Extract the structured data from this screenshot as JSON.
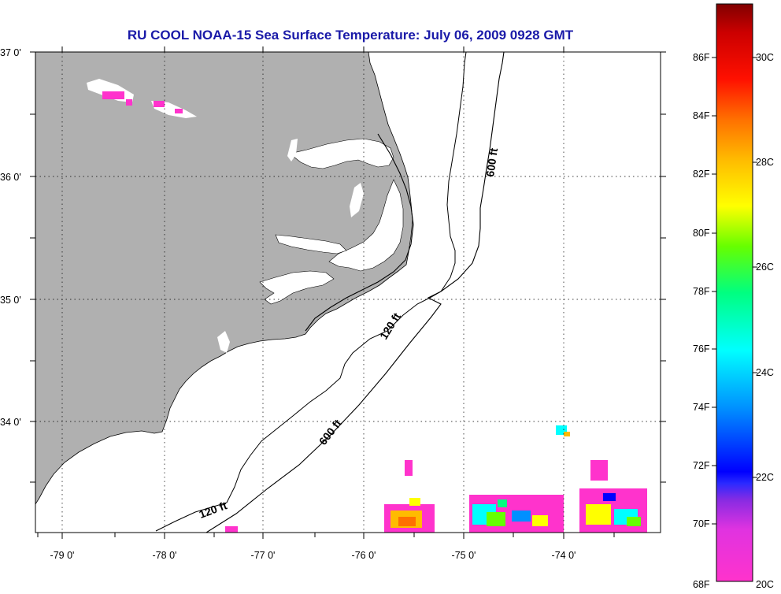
{
  "title": "RU COOL  NOAA-15  Sea Surface Temperature:  July 06, 2009 0928 GMT",
  "map": {
    "lon_labels": [
      "-79 0'",
      "-78 0'",
      "-77 0'",
      "-76 0'",
      "-75 0'",
      "-74 0'"
    ],
    "lat_labels": [
      "37 0'",
      "36 0'",
      "35 0'",
      "34 0'"
    ],
    "isobath_labels": [
      "600 ft",
      "120 ft",
      "600 ft",
      "120 ft"
    ],
    "land_color": "#b0b0b0",
    "grid": "dotted"
  },
  "colorbar": {
    "fahrenheit_labels": [
      "86F",
      "84F",
      "82F",
      "80F",
      "78F",
      "76F",
      "74F",
      "72F",
      "70F",
      "68F"
    ],
    "celsius_labels": [
      "30C",
      "28C",
      "26C",
      "24C",
      "22C",
      "20C"
    ]
  }
}
